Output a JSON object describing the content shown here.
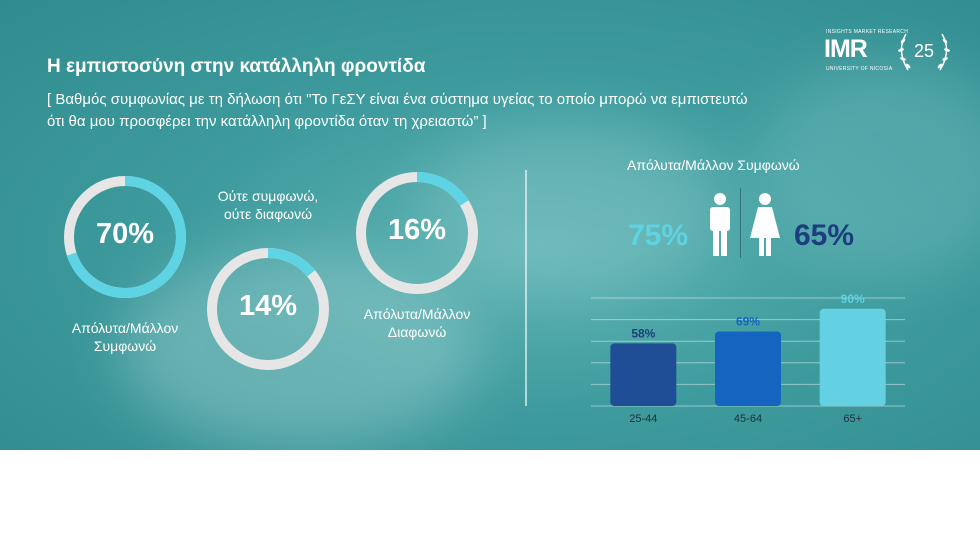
{
  "title": "Η εμπιστοσύνη στην κατάλληλη φροντίδα",
  "subtitle_line1": "[ Βαθμός συμφωνίας με τη δήλωση ότι \"Το ΓεΣΥ είναι ένα σύστημα υγείας το οποίο μπορώ να εμπιστευτώ",
  "subtitle_line2": "ότι θα μου προσφέρει την κατάλληλη φροντίδα όταν τη χρειαστώ” ]",
  "logo": {
    "top_text": "INSIGHTS MARKET RESEARCH",
    "wordmark": "IMR",
    "bottom_text": "UNIVERSITY OF NICOSIA",
    "anniversary": "25"
  },
  "colors": {
    "ring_track": "#e6e6e6",
    "ring_fill": "#5ed3e3",
    "male": "#5ed3e3",
    "female": "#1d3d7c"
  },
  "chart_data": [
    {
      "type": "pie",
      "subtype": "donut",
      "items": [
        {
          "label": "Απόλυτα/Μάλλον Συμφωνώ",
          "caption_lines": [
            "Απόλυτα/Μάλλον",
            "Συμφωνώ"
          ],
          "value": 70,
          "display": "70%"
        },
        {
          "label": "Ούτε συμφωνώ, ούτε διαφωνώ",
          "caption_lines": [
            "Ούτε συμφωνώ,",
            "ούτε διαφωνώ"
          ],
          "value": 14,
          "display": "14%"
        },
        {
          "label": "Απόλυτα/Μάλλον Διαφωνώ",
          "caption_lines": [
            "Απόλυτα/Μάλλον",
            "Διαφωνώ"
          ],
          "value": 16,
          "display": "16%"
        }
      ]
    },
    {
      "type": "bar",
      "title": "Απόλυτα/Μάλλον Συμφωνώ",
      "gender": {
        "male": "75%",
        "female": "65%"
      },
      "categories": [
        "25-44",
        "45-64",
        "65+"
      ],
      "values": [
        58,
        69,
        90
      ],
      "labels": [
        "58%",
        "69%",
        "90%"
      ],
      "bar_colors": [
        "#1f4e96",
        "#1565c0",
        "#63d1e1"
      ],
      "label_colors": [
        "#1d3d7c",
        "#1565c0",
        "#5ed3e3"
      ],
      "ylim": [
        0,
        100
      ],
      "grid": true
    }
  ]
}
